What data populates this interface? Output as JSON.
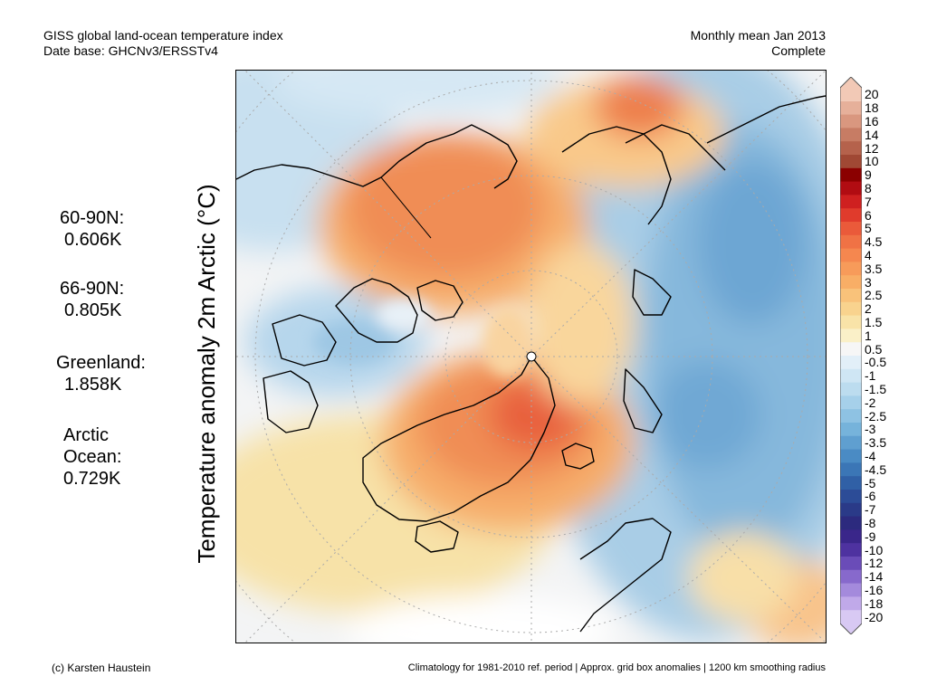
{
  "header": {
    "title": "GISS global land-ocean temperature index",
    "dataset": "Date base: GHCNv3/ERSSTv4",
    "period": "Monthly mean Jan 2013",
    "status": "Complete"
  },
  "y_axis_label": "Temperature anomaly 2m Arctic (°C)",
  "regions": [
    {
      "name": "60-90N:",
      "value": "0.606K"
    },
    {
      "name": "66-90N:",
      "value": "0.805K"
    },
    {
      "name": "Greenland:",
      "value": "1.858K"
    },
    {
      "name_line1": "Arctic",
      "name_line2": "Ocean:",
      "value": "0.729K"
    }
  ],
  "colorbar": {
    "labels": [
      "20",
      "18",
      "16",
      "14",
      "12",
      "10",
      "9",
      "8",
      "7",
      "6",
      "5",
      "4.5",
      "4",
      "3.5",
      "3",
      "2.5",
      "2",
      "1.5",
      "1",
      "0.5",
      "-0.5",
      "-1",
      "-1.5",
      "-2",
      "-2.5",
      "-3",
      "-3.5",
      "-4",
      "-4.5",
      "-5",
      "-6",
      "-7",
      "-8",
      "-9",
      "-10",
      "-12",
      "-14",
      "-16",
      "-18",
      "-20"
    ],
    "colors": [
      "#f2c9b6",
      "#e6b09a",
      "#d9977f",
      "#c77c64",
      "#b5624c",
      "#a04834",
      "#8b0000",
      "#b10c12",
      "#cf2020",
      "#e03b2c",
      "#ea5a3a",
      "#f07245",
      "#f5874f",
      "#f79b5a",
      "#f8ae66",
      "#f9c27a",
      "#f9d38e",
      "#f9e3a8",
      "#faf0c8",
      "#f6f6f6",
      "#e2eff8",
      "#cfe6f4",
      "#bcdcef",
      "#a6d0ea",
      "#8ec2e3",
      "#76b3db",
      "#5f9fd0",
      "#4a8bc4",
      "#3b76b6",
      "#3060a6",
      "#2c4c97",
      "#2a3a88",
      "#2c2a7e",
      "#3a268a",
      "#4e32a0",
      "#6a4cb8",
      "#8769cc",
      "#a48adc",
      "#c0a9e9",
      "#d8c9f3"
    ]
  },
  "footer": {
    "credit": "(c) Karsten Haustein",
    "note": "Climatology for 1981-2010 ref. period | Approx. grid box anomalies | 1200 km smoothing radius"
  }
}
